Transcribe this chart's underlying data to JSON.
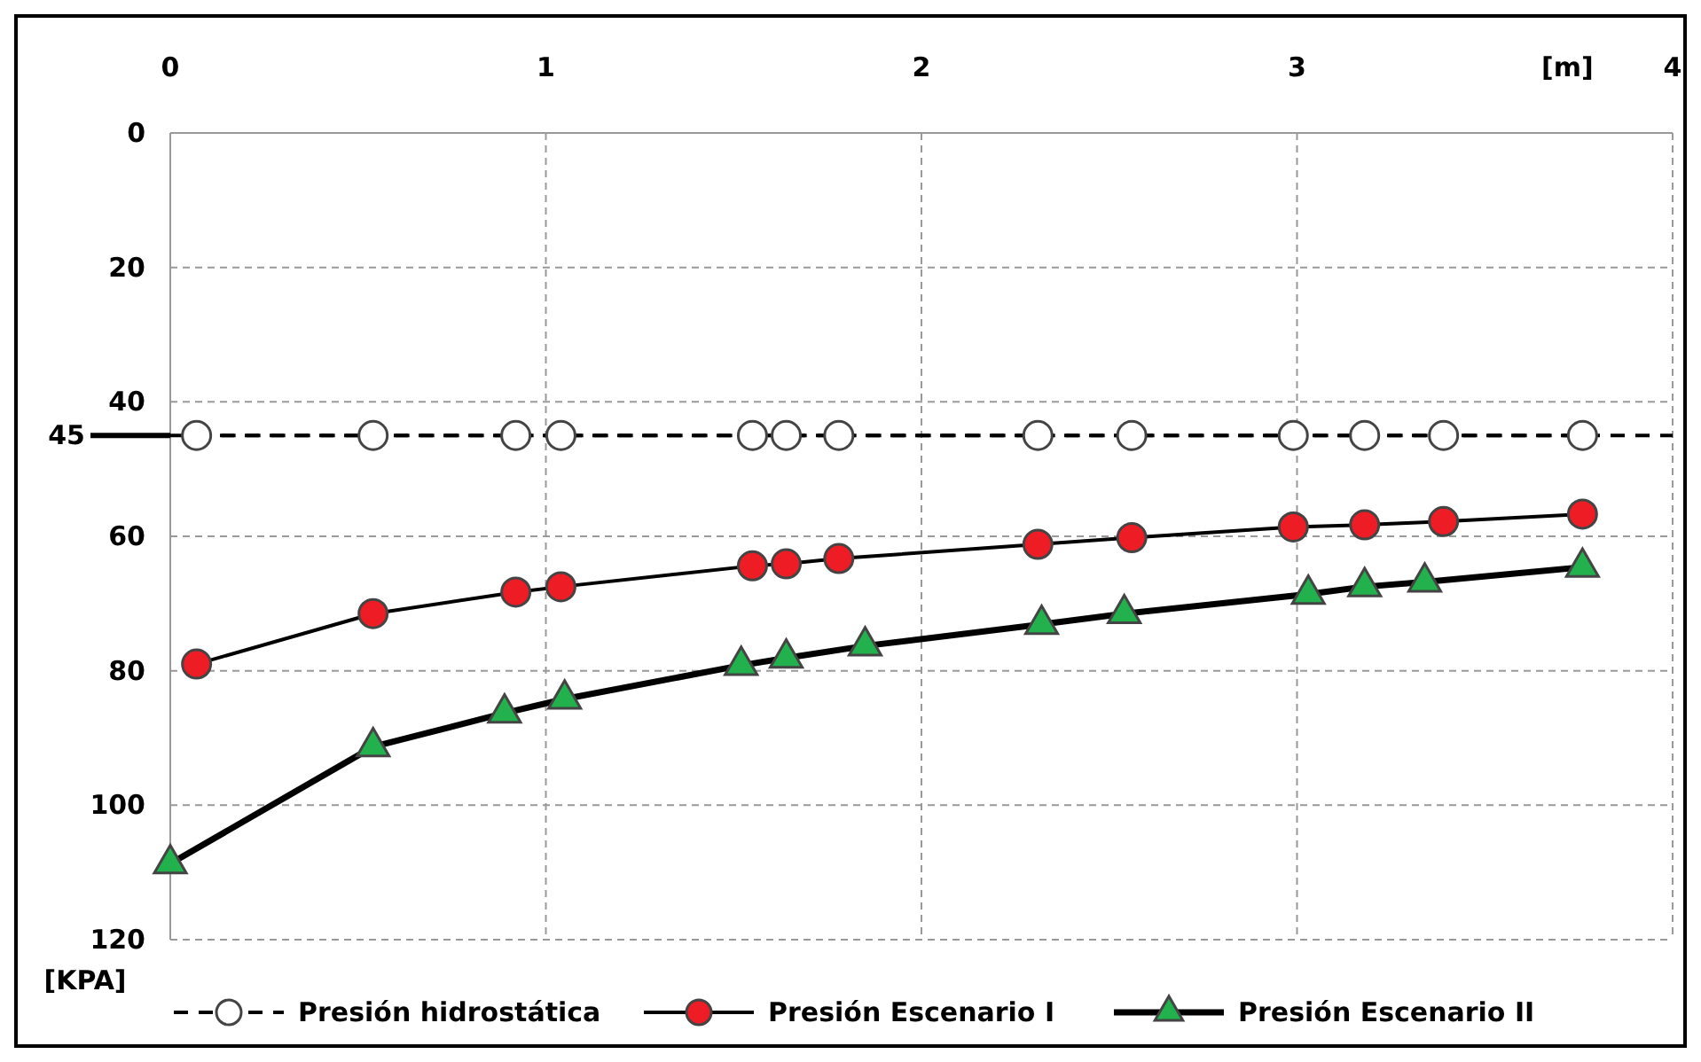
{
  "chart_data": {
    "type": "line",
    "xlabel": "[m]",
    "ylabel": "[KPA]",
    "xlim": [
      0,
      4
    ],
    "xticks": [
      0,
      1,
      2,
      3,
      4
    ],
    "ylim": [
      120,
      0
    ],
    "yticks": [
      0,
      20,
      40,
      60,
      80,
      100,
      120
    ],
    "grid": true,
    "legend": "bottom",
    "ref_lines": [
      {
        "axis": "y",
        "value": 45,
        "label": "45",
        "color": "#000000",
        "line_style": "dashed"
      }
    ],
    "series": [
      {
        "name": "Presión hidrostática",
        "color": "#ffffff",
        "marker": "circle",
        "line_style": "dashed",
        "x": [
          0.07,
          0.54,
          0.92,
          1.04,
          1.55,
          1.64,
          1.78,
          2.31,
          2.56,
          2.99,
          3.18,
          3.39,
          3.76
        ],
        "values": [
          45,
          45,
          45,
          45,
          45,
          45,
          45,
          45,
          45,
          45,
          45,
          45,
          45
        ]
      },
      {
        "name": "Presión Escenario I",
        "color": "#ee1c25",
        "marker": "circle",
        "line_style": "solid",
        "x": [
          0.07,
          0.54,
          0.92,
          1.04,
          1.55,
          1.64,
          1.78,
          2.31,
          2.56,
          2.99,
          3.18,
          3.39,
          3.76
        ],
        "values": [
          79,
          71.5,
          68.3,
          67.5,
          64.4,
          64.1,
          63.3,
          61.2,
          60.2,
          58.6,
          58.3,
          57.8,
          56.7
        ]
      },
      {
        "name": "Presión Escenario II",
        "color": "#22b14c",
        "marker": "triangle",
        "line_style": "solid",
        "x": [
          0,
          0.54,
          0.89,
          1.05,
          1.52,
          1.64,
          1.85,
          2.32,
          2.54,
          3.03,
          3.18,
          3.34,
          3.76
        ],
        "values": [
          108.7,
          91.3,
          86.3,
          84.2,
          79.2,
          78.1,
          76.3,
          73.1,
          71.5,
          68.6,
          67.5,
          66.8,
          64.6
        ]
      }
    ]
  }
}
